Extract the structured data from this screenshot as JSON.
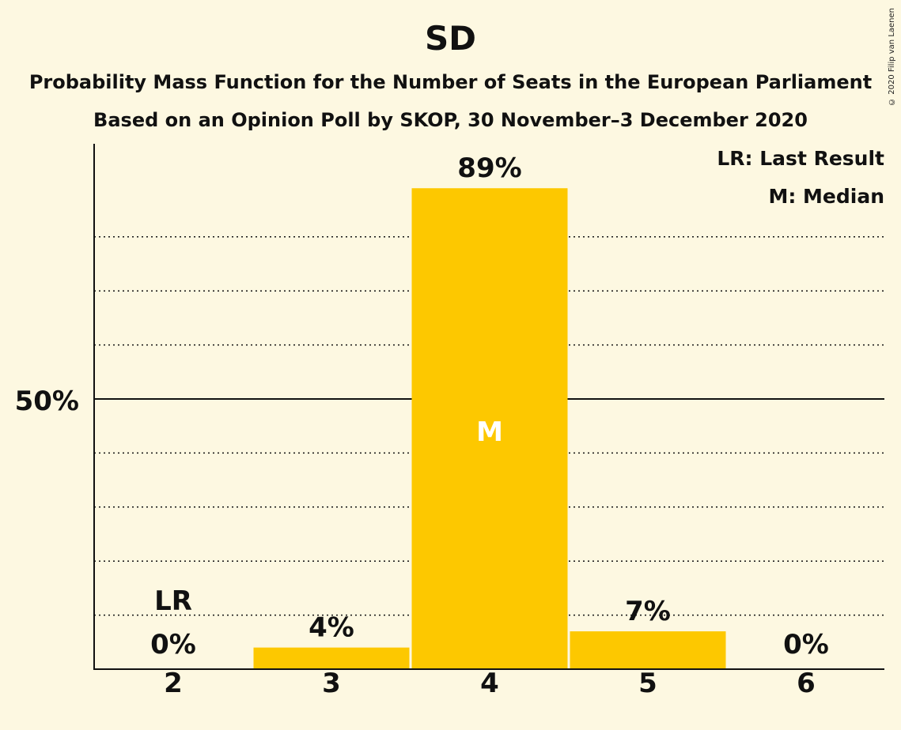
{
  "chart_data": {
    "type": "bar",
    "title": "SD",
    "subtitle": "Probability Mass Function for the Number of Seats in the European Parliament",
    "subtitle2": "Based on an Opinion Poll by SKOP, 30 November–3 December 2020",
    "categories": [
      "2",
      "3",
      "4",
      "5",
      "6"
    ],
    "values": [
      0,
      4,
      89,
      7,
      0
    ],
    "value_labels": [
      "0%",
      "4%",
      "89%",
      "7%",
      "0%"
    ],
    "y_tick_labels": [
      {
        "value": 50,
        "label": "50%"
      }
    ],
    "ylim": [
      0,
      97
    ],
    "grid": true,
    "gridlines": [
      10,
      20,
      30,
      40,
      60,
      70,
      80
    ],
    "bar_color": "#fdc800",
    "annotations": [
      {
        "category": "2",
        "text": "LR"
      },
      {
        "category": "4",
        "text": "M"
      }
    ],
    "legend": [
      "LR: Last Result",
      "M: Median"
    ],
    "legend_position": "top-right"
  },
  "copyright": "© 2020 Filip van Laenen"
}
